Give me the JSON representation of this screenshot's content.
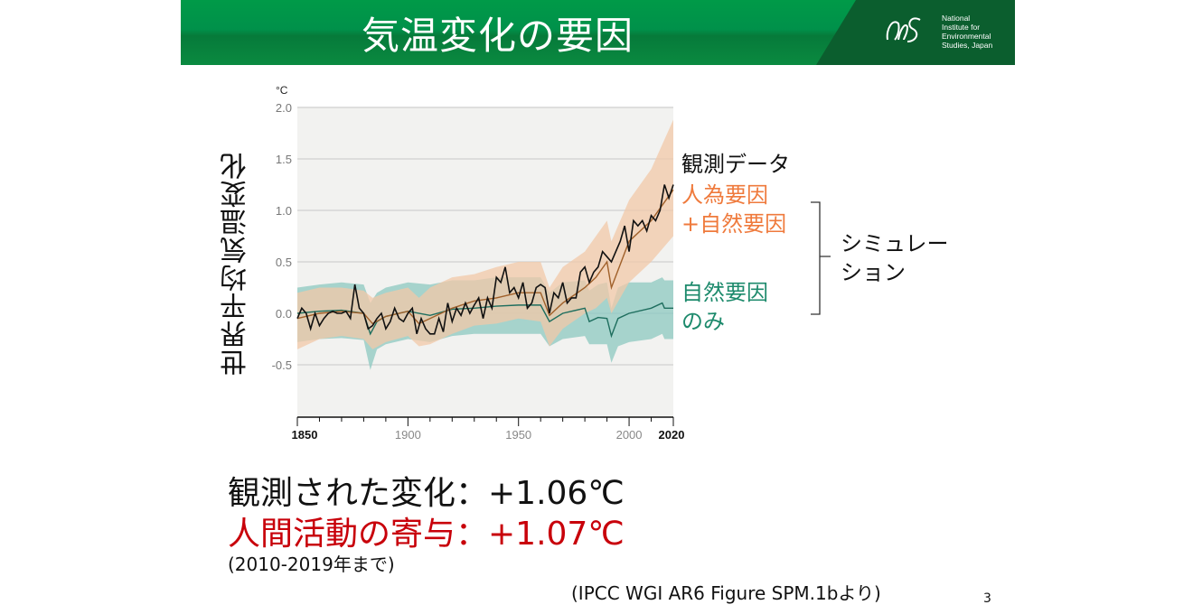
{
  "header": {
    "title": "気温変化の要因",
    "logo_text": [
      "National",
      "Institute for",
      "Environmental",
      "Studies, Japan"
    ]
  },
  "chart_data": {
    "type": "line",
    "ylabel": "世界平均気温変化",
    "yunit": "°C",
    "xlim": [
      1850,
      2020
    ],
    "ylim": [
      -1.0,
      2.0
    ],
    "yticks": [
      "2.0",
      "1.5",
      "1.0",
      "0.5",
      "0.0",
      "-0.5"
    ],
    "ytick_values": [
      2.0,
      1.5,
      1.0,
      0.5,
      0.0,
      -0.5
    ],
    "xticks": [
      "1850",
      "1900",
      "1950",
      "2000",
      "2020"
    ],
    "xtick_values": [
      1850,
      1900,
      1950,
      2000,
      2020
    ],
    "series": [
      {
        "name": "観測データ",
        "color": "#111111",
        "x": [
          1850,
          1852,
          1854,
          1856,
          1858,
          1860,
          1862,
          1864,
          1866,
          1868,
          1870,
          1872,
          1874,
          1876,
          1878,
          1880,
          1882,
          1884,
          1886,
          1888,
          1890,
          1892,
          1894,
          1896,
          1898,
          1900,
          1902,
          1904,
          1906,
          1908,
          1910,
          1912,
          1914,
          1916,
          1918,
          1920,
          1922,
          1924,
          1926,
          1928,
          1930,
          1932,
          1934,
          1936,
          1938,
          1940,
          1942,
          1944,
          1946,
          1948,
          1950,
          1952,
          1954,
          1956,
          1958,
          1960,
          1962,
          1964,
          1966,
          1968,
          1970,
          1972,
          1974,
          1976,
          1978,
          1980,
          1982,
          1984,
          1986,
          1988,
          1990,
          1992,
          1994,
          1996,
          1998,
          2000,
          2002,
          2004,
          2006,
          2008,
          2010,
          2012,
          2014,
          2016,
          2018,
          2020
        ],
        "y": [
          -0.05,
          0.05,
          0.0,
          -0.15,
          0.0,
          -0.12,
          -0.05,
          0.0,
          0.02,
          0.0,
          0.0,
          0.02,
          -0.05,
          0.28,
          0.05,
          0.0,
          -0.15,
          -0.12,
          -0.05,
          0.0,
          -0.15,
          -0.08,
          0.05,
          -0.05,
          -0.08,
          0.0,
          0.05,
          -0.2,
          -0.05,
          -0.15,
          -0.2,
          -0.2,
          -0.05,
          -0.18,
          0.1,
          -0.08,
          0.05,
          -0.02,
          0.1,
          0.0,
          0.08,
          0.15,
          -0.05,
          0.15,
          0.05,
          0.35,
          0.3,
          0.45,
          0.2,
          0.25,
          0.15,
          0.3,
          0.05,
          0.1,
          0.25,
          0.28,
          0.25,
          0.0,
          0.2,
          0.15,
          0.3,
          0.1,
          0.15,
          0.15,
          0.4,
          0.45,
          0.3,
          0.4,
          0.45,
          0.6,
          0.55,
          0.5,
          0.6,
          0.7,
          0.85,
          0.6,
          0.9,
          0.85,
          0.9,
          0.8,
          0.95,
          0.9,
          1.0,
          1.25,
          1.12,
          1.25
        ]
      },
      {
        "name": "人為要因+自然要因",
        "color": "#a0602a",
        "band_color": "#f2c8a8",
        "x": [
          1850,
          1860,
          1870,
          1880,
          1884,
          1890,
          1900,
          1905,
          1910,
          1920,
          1930,
          1940,
          1950,
          1960,
          1964,
          1970,
          1980,
          1985,
          1990,
          1992,
          2000,
          2010,
          2020
        ],
        "y": [
          -0.05,
          0.0,
          0.02,
          0.0,
          -0.1,
          -0.03,
          0.02,
          -0.1,
          -0.05,
          0.05,
          0.12,
          0.15,
          0.2,
          0.2,
          -0.02,
          0.1,
          0.25,
          0.35,
          0.5,
          0.25,
          0.7,
          0.9,
          1.2
        ],
        "low": [
          -0.35,
          -0.25,
          -0.22,
          -0.25,
          -0.35,
          -0.28,
          -0.22,
          -0.32,
          -0.3,
          -0.2,
          -0.12,
          -0.1,
          -0.05,
          -0.08,
          -0.32,
          -0.15,
          0.0,
          0.05,
          0.15,
          0.0,
          0.3,
          0.5,
          0.75
        ],
        "high": [
          0.2,
          0.25,
          0.25,
          0.22,
          0.15,
          0.2,
          0.25,
          0.15,
          0.25,
          0.35,
          0.38,
          0.45,
          0.5,
          0.5,
          0.25,
          0.45,
          0.6,
          0.75,
          0.9,
          0.7,
          1.1,
          1.4,
          1.88
        ]
      },
      {
        "name": "自然要因のみ",
        "color": "#1e6e5e",
        "band_color": "#8cc8c0",
        "x": [
          1850,
          1860,
          1870,
          1880,
          1883,
          1886,
          1890,
          1900,
          1910,
          1920,
          1930,
          1940,
          1950,
          1960,
          1964,
          1970,
          1980,
          1982,
          1986,
          1990,
          1992,
          1995,
          2000,
          2010,
          2015,
          2016,
          2020
        ],
        "y": [
          0.0,
          0.02,
          0.03,
          0.0,
          -0.2,
          -0.08,
          -0.03,
          0.02,
          -0.02,
          0.04,
          0.05,
          0.07,
          0.08,
          0.08,
          -0.08,
          0.0,
          0.05,
          -0.08,
          -0.04,
          -0.05,
          -0.22,
          -0.05,
          0.0,
          0.05,
          0.1,
          0.05,
          0.05
        ],
        "low": [
          -0.28,
          -0.25,
          -0.24,
          -0.26,
          -0.55,
          -0.35,
          -0.3,
          -0.25,
          -0.28,
          -0.22,
          -0.2,
          -0.2,
          -0.2,
          -0.2,
          -0.32,
          -0.25,
          -0.22,
          -0.3,
          -0.3,
          -0.3,
          -0.48,
          -0.32,
          -0.28,
          -0.25,
          -0.2,
          -0.25,
          -0.25
        ],
        "high": [
          0.25,
          0.28,
          0.3,
          0.28,
          0.1,
          0.2,
          0.25,
          0.3,
          0.28,
          0.32,
          0.32,
          0.35,
          0.35,
          0.35,
          0.2,
          0.3,
          0.32,
          0.22,
          0.28,
          0.3,
          0.05,
          0.25,
          0.3,
          0.3,
          0.35,
          0.32,
          0.32
        ]
      }
    ]
  },
  "legend": {
    "observed": "観測データ",
    "human_natural_1": "人為要因",
    "human_natural_2": "+自然要因",
    "natural_1": "自然要因",
    "natural_2": "のみ",
    "simulation_1": "シミュレー",
    "simulation_2": "ション"
  },
  "colors": {
    "orange": "#ef7a3c",
    "teal": "#1d8a6c",
    "red": "#c8000a"
  },
  "summary": {
    "observed": "観測された変化：+1.06℃",
    "human": "人間活動の寄与：+1.07℃",
    "period": "(2010-2019年まで)"
  },
  "citation": "(IPCC WGI AR6 Figure SPM.1bより)",
  "page_number": "3"
}
